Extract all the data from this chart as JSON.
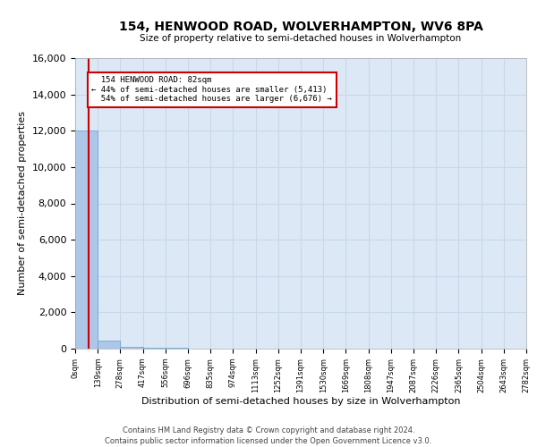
{
  "title": "154, HENWOOD ROAD, WOLVERHAMPTON, WV6 8PA",
  "subtitle": "Size of property relative to semi-detached houses in Wolverhampton",
  "xlabel": "Distribution of semi-detached houses by size in Wolverhampton",
  "ylabel": "Number of semi-detached properties",
  "property_size": 82,
  "property_label": "154 HENWOOD ROAD: 82sqm",
  "pct_smaller": 44,
  "pct_larger": 54,
  "n_smaller": 5413,
  "n_larger": 6676,
  "bar_edges": [
    0,
    139,
    278,
    417,
    556,
    696,
    835,
    974,
    1113,
    1252,
    1391,
    1530,
    1669,
    1808,
    1947,
    2087,
    2226,
    2365,
    2504,
    2643,
    2782
  ],
  "bar_heights": [
    12000,
    450,
    80,
    40,
    25,
    18,
    12,
    10,
    8,
    7,
    6,
    5,
    4,
    3,
    3,
    2,
    2,
    2,
    1,
    1
  ],
  "bar_color": "#aec6e8",
  "bar_edge_color": "#5a9fd4",
  "property_line_color": "#cc0000",
  "annotation_box_color": "#cc0000",
  "grid_color": "#c8d8e8",
  "bg_color": "#dce8f5",
  "ylim": [
    0,
    16000
  ],
  "yticks": [
    0,
    2000,
    4000,
    6000,
    8000,
    10000,
    12000,
    14000,
    16000
  ],
  "footer_line1": "Contains HM Land Registry data © Crown copyright and database right 2024.",
  "footer_line2": "Contains public sector information licensed under the Open Government Licence v3.0."
}
